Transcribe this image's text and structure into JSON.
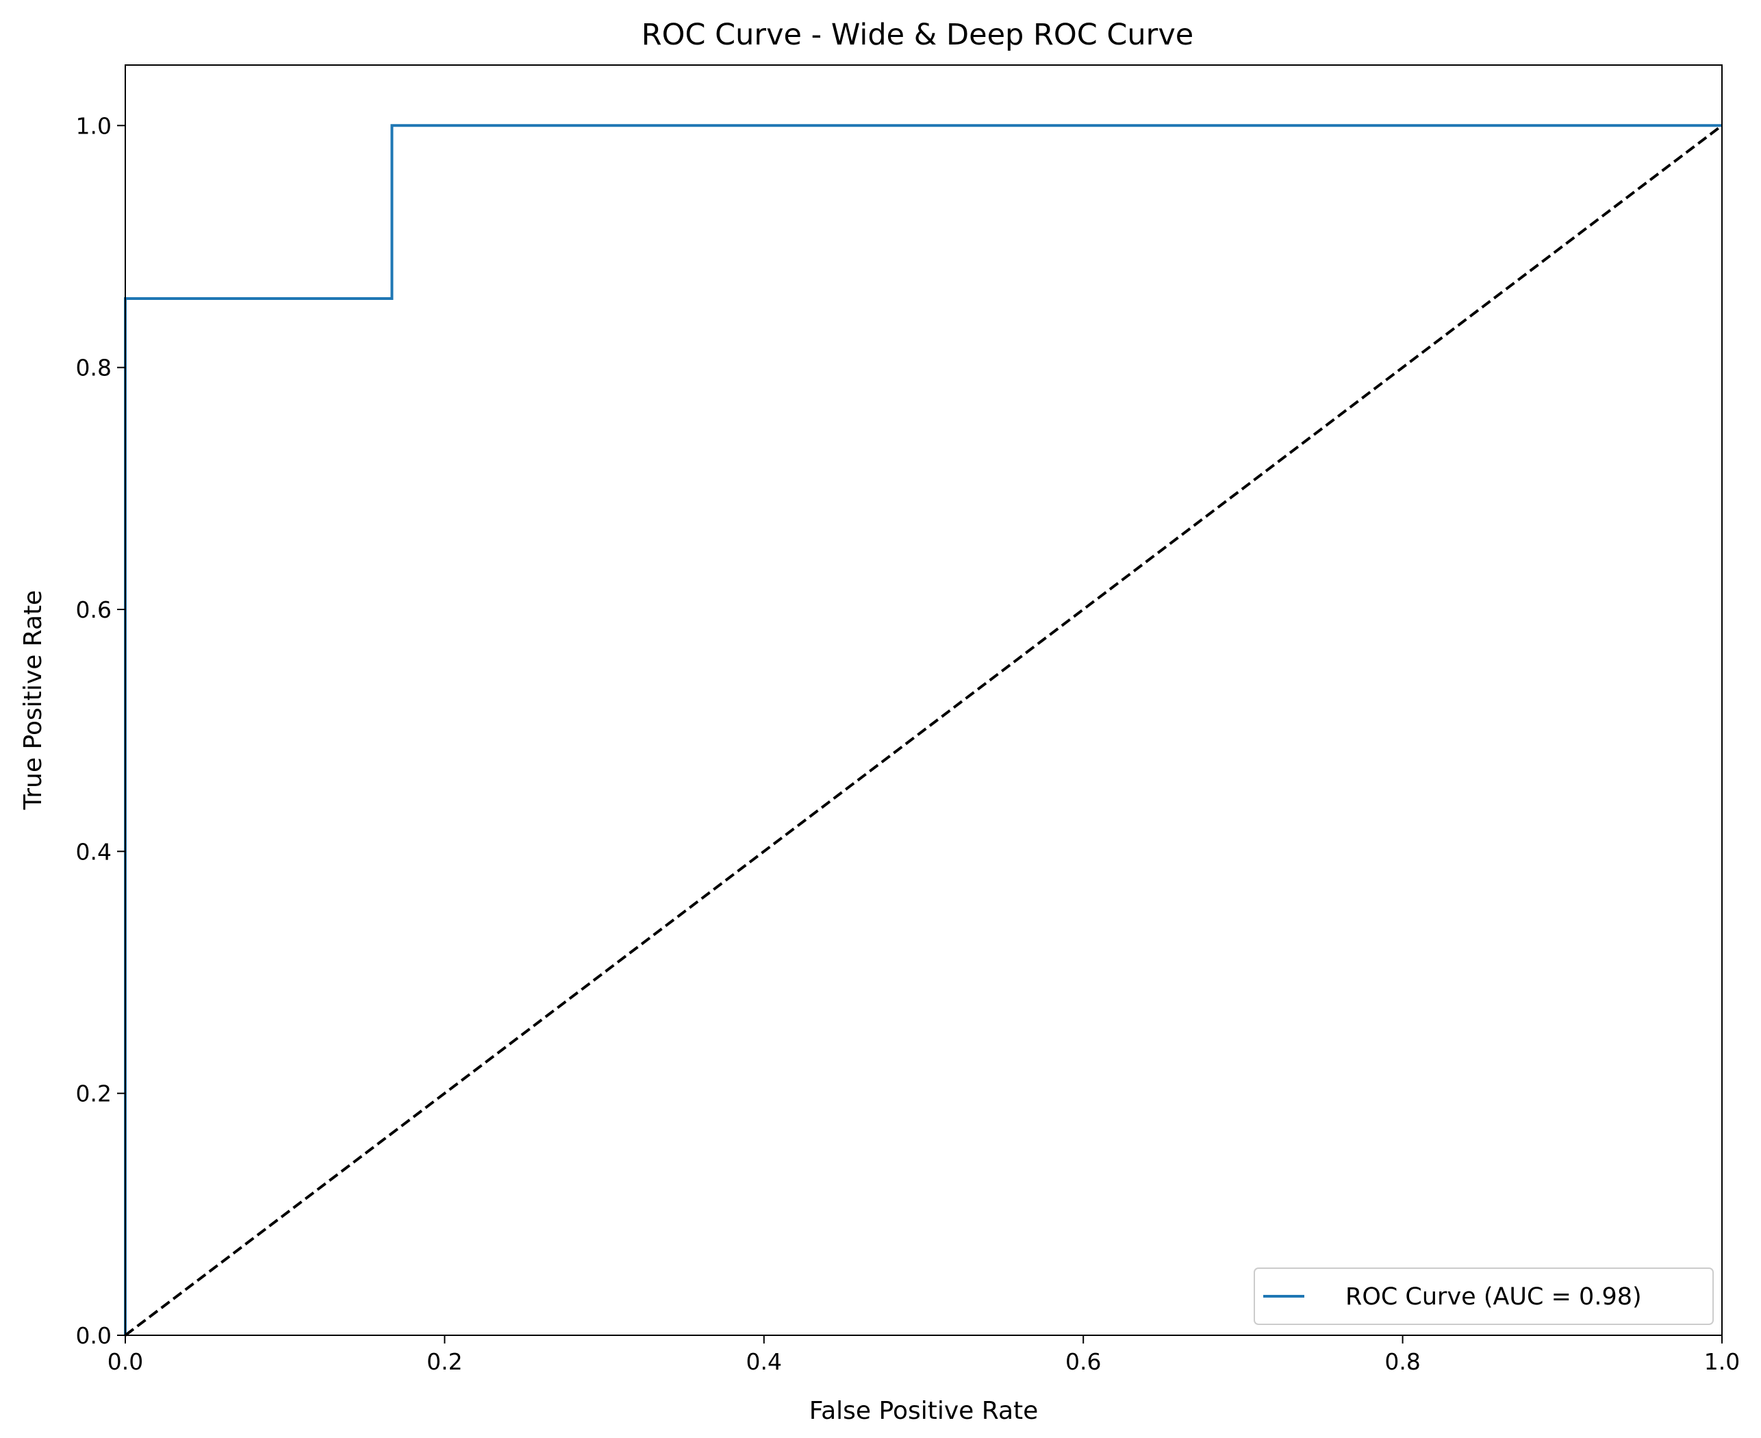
{
  "chart_data": {
    "type": "line",
    "title": "ROC Curve - Wide & Deep ROC Curve",
    "xlabel": "False Positive Rate",
    "ylabel": "True Positive Rate",
    "xlim": [
      0.0,
      1.0
    ],
    "ylim": [
      0.0,
      1.05
    ],
    "xticks": [
      0.0,
      0.2,
      0.4,
      0.6,
      0.8,
      1.0
    ],
    "xtick_labels": [
      "0.0",
      "0.2",
      "0.4",
      "0.6",
      "0.8",
      "1.0"
    ],
    "yticks": [
      0.0,
      0.2,
      0.4,
      0.6,
      0.8,
      1.0
    ],
    "ytick_labels": [
      "0.0",
      "0.2",
      "0.4",
      "0.6",
      "0.8",
      "1.0"
    ],
    "grid": false,
    "legend_position": "lower-right",
    "series": [
      {
        "name": "ROC Curve (AUC = 0.98)",
        "color": "#1f77b4",
        "style": "solid",
        "x": [
          0.0,
          0.0,
          0.167,
          0.167,
          1.0
        ],
        "y": [
          0.0,
          0.857,
          0.857,
          1.0,
          1.0
        ]
      },
      {
        "color": "#000000",
        "style": "dashed",
        "x": [
          0.0,
          1.0
        ],
        "y": [
          0.0,
          1.0
        ]
      }
    ]
  }
}
